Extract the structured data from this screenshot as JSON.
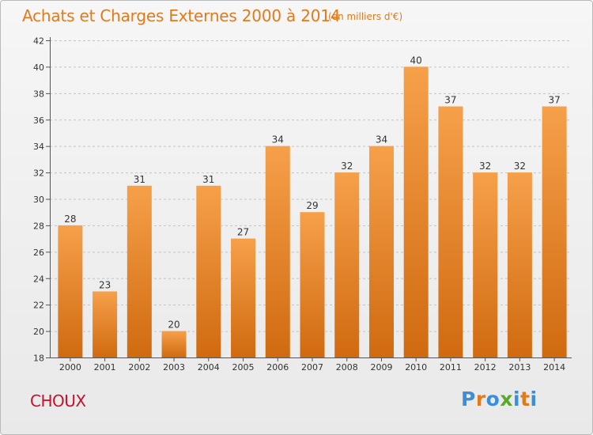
{
  "header": {
    "title": "Achats et Charges Externes 2000 à 2014",
    "subtitle": "(en milliers d'€)"
  },
  "footer": {
    "commune": "CHOUX",
    "logo_text": "Proxiti",
    "logo_colors": [
      "#3a8fd8",
      "#e07a1a",
      "#3a8fd8",
      "#5aaa2a",
      "#3a8fd8",
      "#e07a1a",
      "#3a8fd8"
    ]
  },
  "colors": {
    "bar_top": "#f6a04a",
    "bar_bottom": "#d06a10",
    "title": "#e07a1a",
    "commune": "#c8102e",
    "grid": "#c4c4c4"
  },
  "chart_data": {
    "type": "bar",
    "title": "Achats et Charges Externes 2000 à 2014",
    "subtitle": "(en milliers d'€)",
    "categories": [
      "2000",
      "2001",
      "2002",
      "2003",
      "2004",
      "2005",
      "2006",
      "2007",
      "2008",
      "2009",
      "2010",
      "2011",
      "2012",
      "2013",
      "2014"
    ],
    "values": [
      28,
      23,
      31,
      20,
      31,
      27,
      34,
      29,
      32,
      34,
      40,
      37,
      32,
      32,
      37
    ],
    "ylim": [
      18,
      42
    ],
    "yticks": [
      18,
      20,
      22,
      24,
      26,
      28,
      30,
      32,
      34,
      36,
      38,
      40,
      42
    ],
    "xlabel": "",
    "ylabel": "",
    "grid": true,
    "data_labels": true
  }
}
